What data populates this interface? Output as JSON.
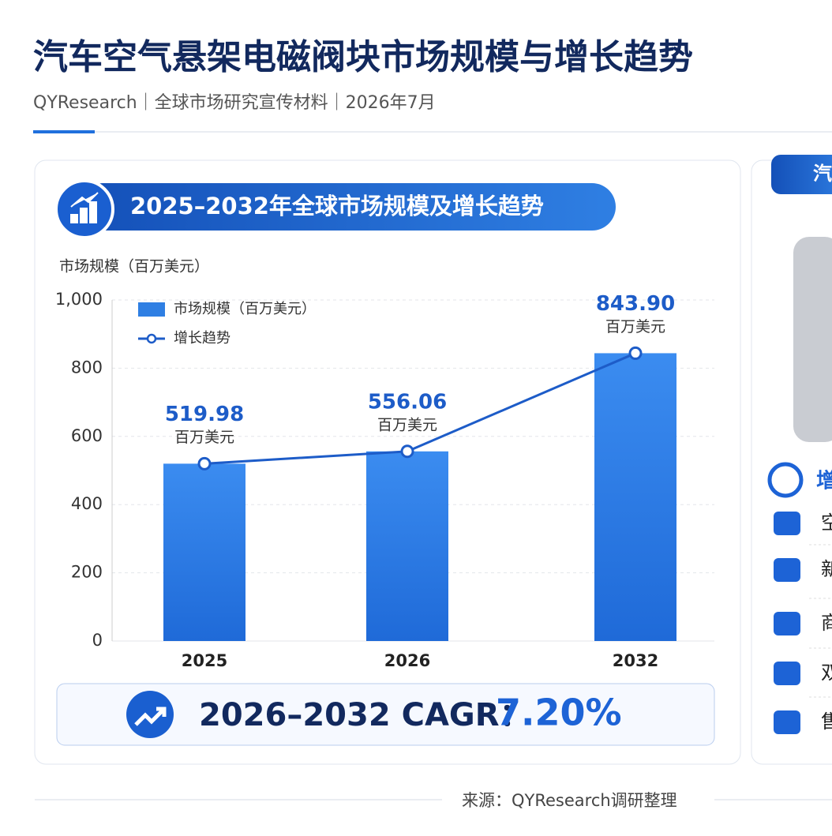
{
  "header": {
    "title": "汽车空气悬架电磁阀块市场规模与增长趋势",
    "subtitle": "QYResearch｜全球市场研究宣传材料｜2026年7月"
  },
  "panel_title": "2025–2032年全球市场规模及增长趋势",
  "chart_data": {
    "type": "bar",
    "y_label": "市场规模（百万美元）",
    "value_unit": "百万美元",
    "categories": [
      "2025",
      "2026",
      "2032"
    ],
    "series": [
      {
        "name": "市场规模（百万美元）",
        "type": "bar",
        "color": "#2f7fe3",
        "values": [
          519.98,
          556.06,
          843.9
        ],
        "value_labels": [
          "519.98",
          "556.06",
          "843.90"
        ]
      },
      {
        "name": "增长趋势",
        "type": "line",
        "color": "#1d5cc8",
        "values": [
          519.98,
          556.06,
          843.9
        ]
      }
    ],
    "ylim": [
      0,
      1000
    ],
    "yticks": [
      0,
      200,
      400,
      600,
      800,
      {
        "value": 1000,
        "label": "1,000"
      }
    ],
    "grid": true,
    "legend": "top-left"
  },
  "cagr": {
    "label": "2026–2032 CAGR：",
    "value": "7.20%"
  },
  "right_panel": {
    "title": "汽",
    "section": "增",
    "items": [
      "空",
      "新",
      "商",
      "双",
      "售"
    ]
  },
  "source": "来源：QYResearch调研整理"
}
